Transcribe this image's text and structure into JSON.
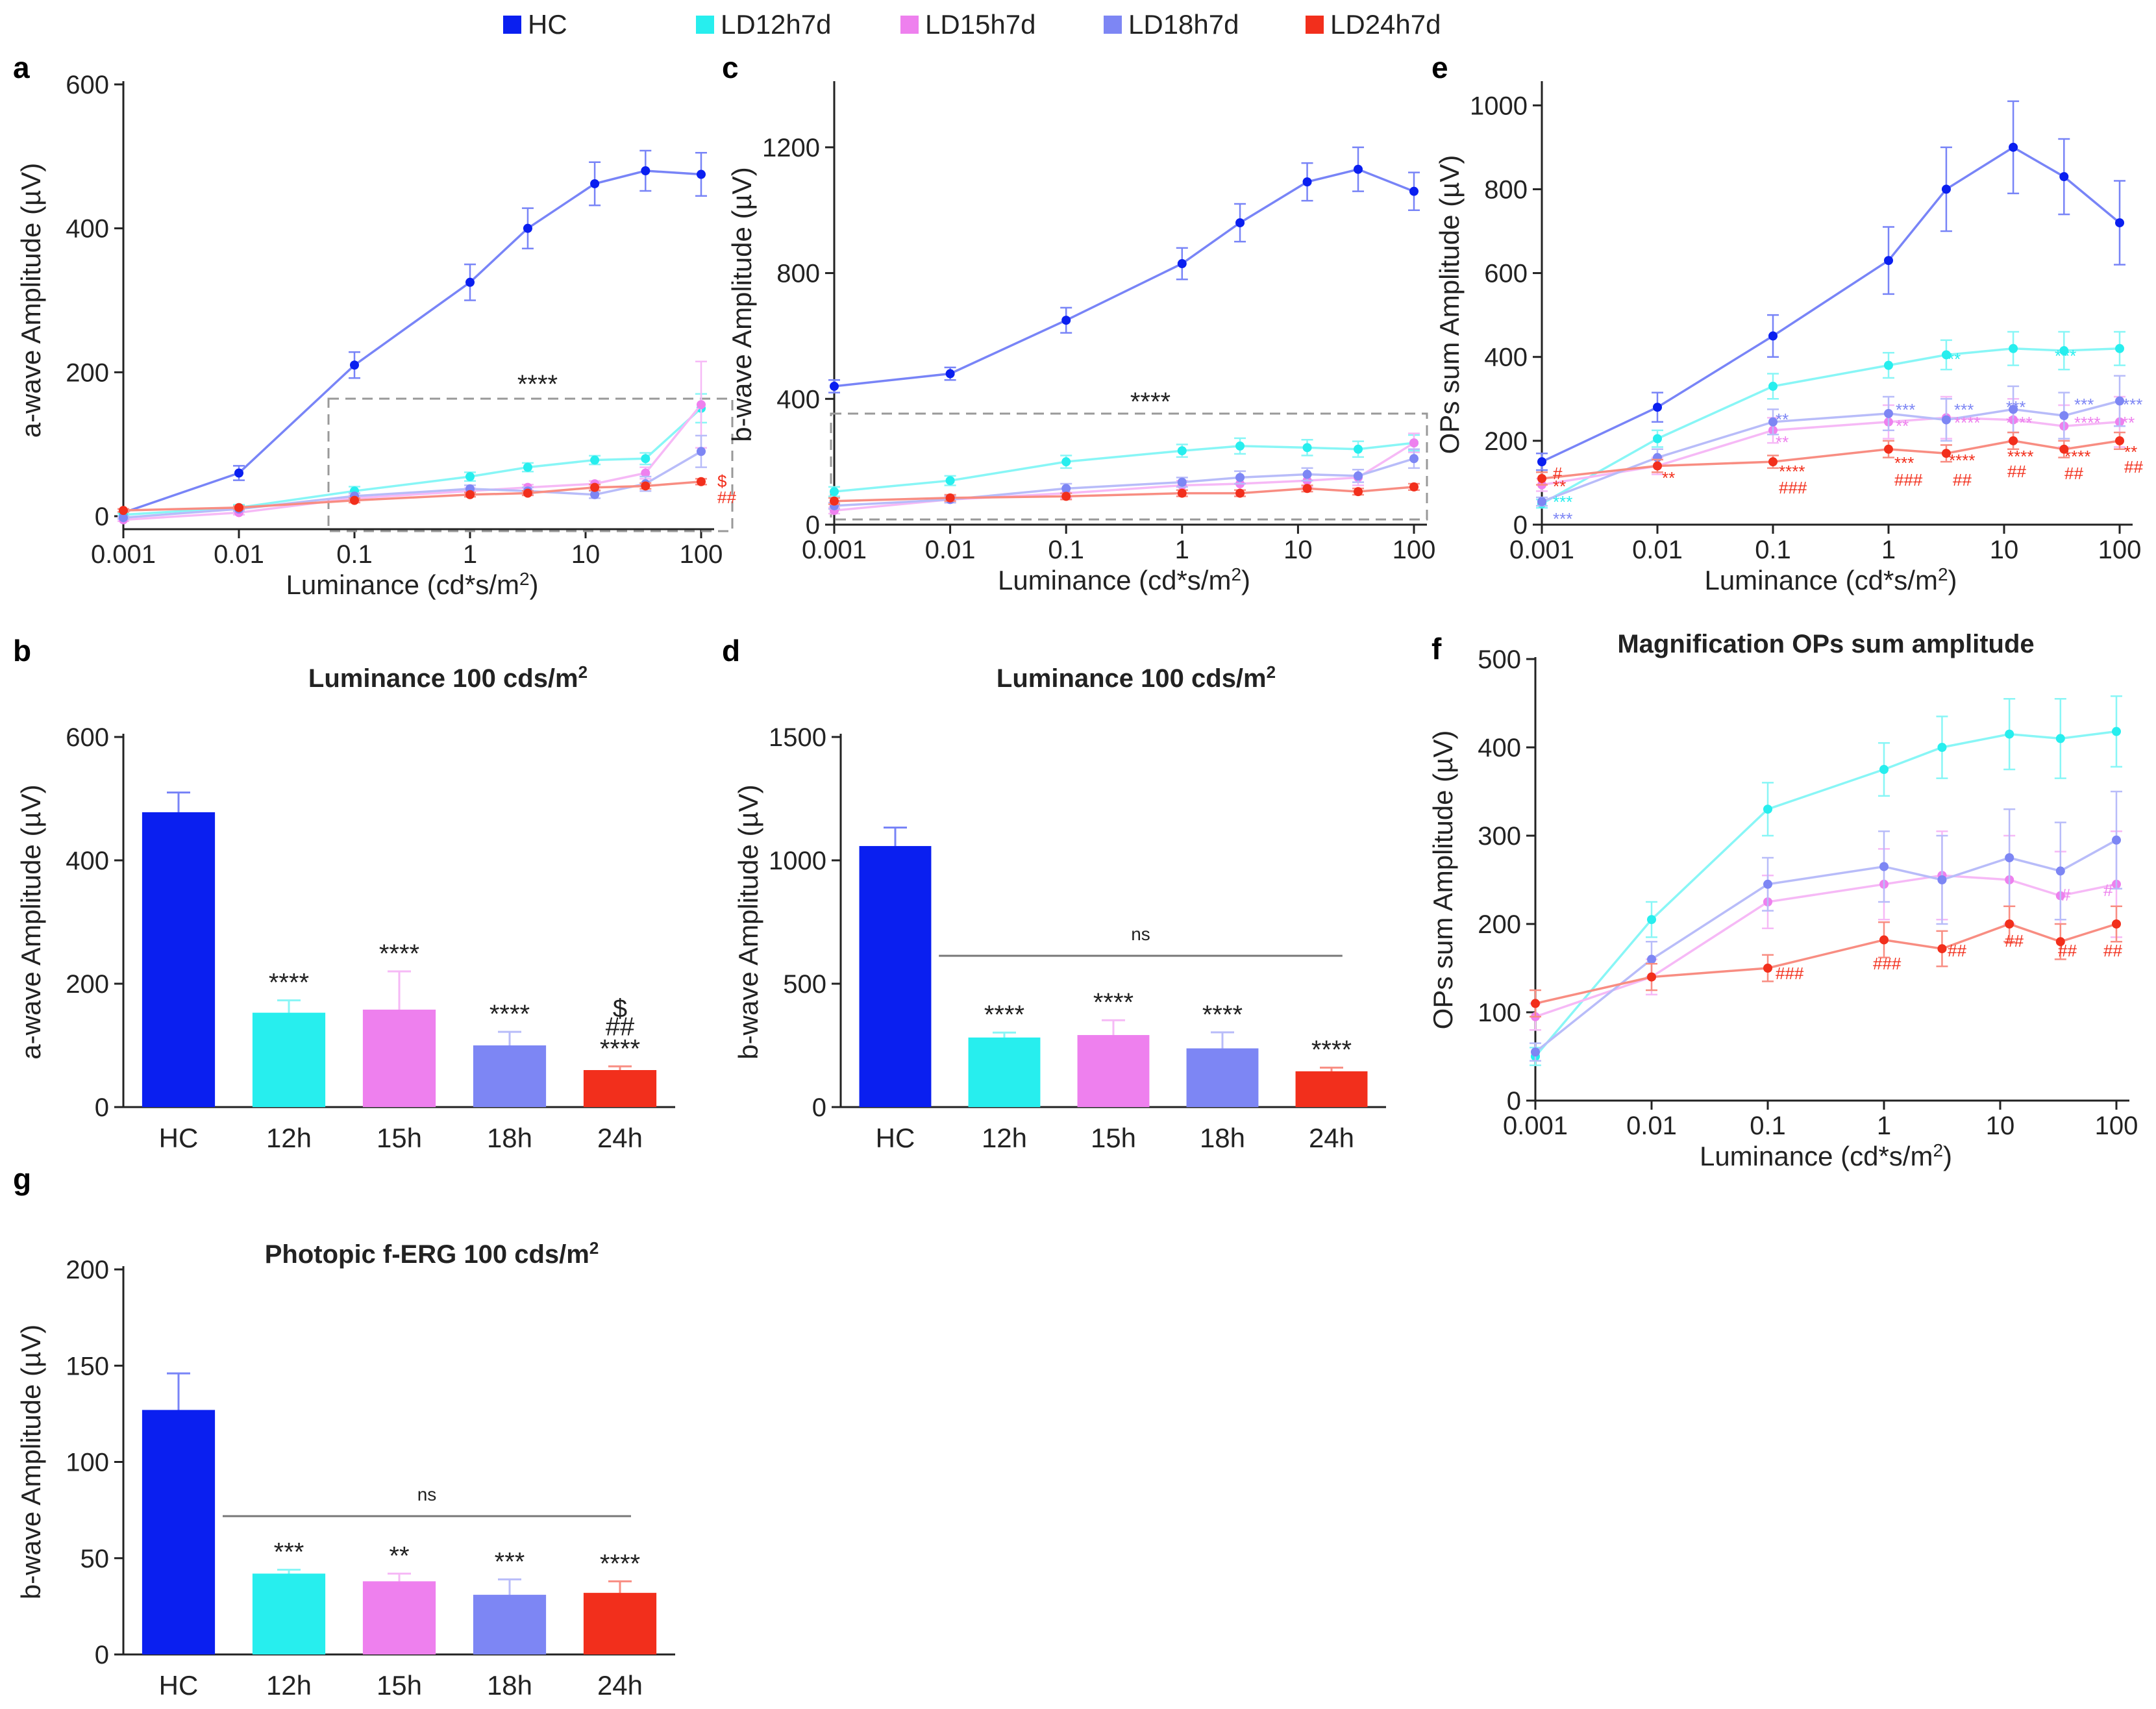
{
  "groups": {
    "names": [
      "HC",
      "LD12h7d",
      "LD15h7d",
      "LD18h7d",
      "LD24h7d"
    ],
    "colors": [
      "#0a1ff0",
      "#27eeee",
      "#ee80ee",
      "#7d86f4",
      "#f22f1c"
    ],
    "short": [
      "HC",
      "12h",
      "15h",
      "18h",
      "24h"
    ]
  },
  "common": {
    "x_label_prefix": "Luminance (cd*s/m",
    "x_label_sup": "2",
    "x_label_suffix": ")",
    "x_ticks": [
      "0.001",
      "0.01",
      "0.1",
      "1",
      "10",
      "100"
    ],
    "amp_unit": "(µV)"
  },
  "chart_data": [
    {
      "panel": "a",
      "type": "line",
      "ylabel": "a-wave Amplitude (µV)",
      "xlabel": "Luminance (cd*s/m2)",
      "x": [
        0.001,
        0.01,
        0.1,
        1,
        3.16,
        12,
        33,
        100
      ],
      "ylim": [
        0,
        600
      ],
      "yticks": [
        0,
        200,
        400,
        600
      ],
      "series": [
        {
          "name": "HC",
          "values": [
            5,
            60,
            210,
            325,
            400,
            462,
            480,
            475
          ],
          "errors": [
            5,
            10,
            18,
            25,
            28,
            30,
            28,
            30
          ]
        },
        {
          "name": "LD12h7d",
          "values": [
            2,
            12,
            35,
            55,
            68,
            78,
            80,
            150
          ],
          "errors": [
            2,
            4,
            6,
            6,
            6,
            6,
            8,
            20
          ]
        },
        {
          "name": "LD15h7d",
          "values": [
            -5,
            5,
            25,
            35,
            40,
            45,
            60,
            155
          ],
          "errors": [
            2,
            3,
            4,
            4,
            4,
            4,
            8,
            60
          ]
        },
        {
          "name": "LD18h7d",
          "values": [
            -2,
            10,
            28,
            38,
            35,
            30,
            45,
            90
          ],
          "errors": [
            2,
            3,
            4,
            5,
            5,
            5,
            10,
            22
          ]
        },
        {
          "name": "LD24h7d",
          "values": [
            8,
            12,
            22,
            30,
            32,
            40,
            42,
            48
          ],
          "errors": [
            2,
            2,
            3,
            3,
            3,
            4,
            4,
            4
          ]
        }
      ],
      "box_label": "****",
      "red_annotations": [
        "$",
        "##"
      ]
    },
    {
      "panel": "c",
      "type": "line",
      "ylabel": "b-wave Amplitude (µV)",
      "xlabel": "Luminance (cd*s/m2)",
      "x": [
        0.001,
        0.01,
        0.1,
        1,
        3.16,
        12,
        33,
        100
      ],
      "ylim": [
        0,
        1400
      ],
      "yticks": [
        0,
        400,
        800,
        1200
      ],
      "series": [
        {
          "name": "HC",
          "values": [
            440,
            480,
            650,
            830,
            960,
            1090,
            1130,
            1060
          ],
          "errors": [
            20,
            20,
            40,
            50,
            60,
            60,
            70,
            60
          ]
        },
        {
          "name": "LD12h7d",
          "values": [
            105,
            140,
            200,
            235,
            250,
            245,
            240,
            260
          ],
          "errors": [
            15,
            15,
            20,
            20,
            25,
            25,
            25,
            25
          ]
        },
        {
          "name": "LD15h7d",
          "values": [
            45,
            80,
            100,
            125,
            130,
            140,
            150,
            260
          ],
          "errors": [
            10,
            10,
            15,
            15,
            20,
            20,
            25,
            30
          ]
        },
        {
          "name": "LD18h7d",
          "values": [
            60,
            80,
            115,
            135,
            150,
            160,
            155,
            210
          ],
          "errors": [
            10,
            10,
            15,
            15,
            20,
            20,
            20,
            30
          ]
        },
        {
          "name": "LD24h7d",
          "values": [
            75,
            85,
            90,
            100,
            100,
            115,
            105,
            120
          ],
          "errors": [
            10,
            10,
            10,
            10,
            10,
            10,
            10,
            10
          ]
        }
      ],
      "box_label": "****"
    },
    {
      "panel": "e",
      "type": "line",
      "ylabel": "OPs sum Amplitude (µV)",
      "xlabel": "Luminance (cd*s/m2)",
      "x": [
        0.001,
        0.01,
        0.1,
        1,
        3.16,
        12,
        33,
        100
      ],
      "ylim": [
        0,
        1050
      ],
      "yticks": [
        0,
        200,
        400,
        600,
        800,
        1000
      ],
      "series": [
        {
          "name": "HC",
          "values": [
            150,
            280,
            450,
            630,
            800,
            900,
            830,
            720
          ],
          "errors": [
            20,
            35,
            50,
            80,
            100,
            110,
            90,
            100
          ]
        },
        {
          "name": "LD12h7d",
          "values": [
            50,
            205,
            330,
            380,
            405,
            420,
            415,
            420
          ],
          "errors": [
            10,
            20,
            30,
            30,
            35,
            40,
            45,
            40
          ]
        },
        {
          "name": "LD15h7d",
          "values": [
            95,
            140,
            225,
            245,
            255,
            250,
            235,
            245
          ],
          "errors": [
            15,
            20,
            30,
            40,
            50,
            50,
            50,
            60
          ]
        },
        {
          "name": "LD18h7d",
          "values": [
            55,
            160,
            245,
            265,
            250,
            275,
            260,
            295
          ],
          "errors": [
            10,
            20,
            30,
            40,
            50,
            55,
            55,
            60
          ]
        },
        {
          "name": "LD24h7d",
          "values": [
            110,
            140,
            150,
            180,
            170,
            200,
            180,
            200
          ],
          "errors": [
            15,
            15,
            15,
            20,
            20,
            20,
            20,
            20
          ]
        }
      ],
      "annotations": {
        "LD12h7d": [
          "***",
          "**",
          "**",
          "**",
          "**"
        ],
        "LD15h7d": [
          "**",
          "**",
          "****",
          "****",
          "****",
          "**"
        ],
        "LD18h7d": [
          "**",
          "***",
          "***",
          "***",
          "***",
          "***"
        ],
        "LD24h7d": [
          "#",
          "**",
          "**",
          "****",
          "###",
          "***",
          "###",
          "****",
          "##",
          "****",
          "##",
          "****",
          "##",
          "**",
          "##"
        ]
      }
    },
    {
      "panel": "f",
      "type": "line",
      "title": "Magnification OPs sum amplitude",
      "ylabel": "OPs sum Amplitude (µV)",
      "xlabel": "Luminance (cd*s/m2)",
      "x": [
        0.001,
        0.01,
        0.1,
        1,
        3.16,
        12,
        33,
        100
      ],
      "ylim": [
        0,
        500
      ],
      "yticks": [
        0,
        100,
        200,
        300,
        400,
        500
      ],
      "series": [
        {
          "name": "LD12h7d",
          "values": [
            50,
            205,
            330,
            375,
            400,
            415,
            410,
            418
          ],
          "errors": [
            10,
            20,
            30,
            30,
            35,
            40,
            45,
            40
          ]
        },
        {
          "name": "LD15h7d",
          "values": [
            95,
            140,
            225,
            245,
            255,
            250,
            232,
            245
          ],
          "errors": [
            15,
            20,
            30,
            40,
            50,
            50,
            50,
            60
          ]
        },
        {
          "name": "LD18h7d",
          "values": [
            55,
            160,
            245,
            265,
            250,
            275,
            260,
            295
          ],
          "errors": [
            10,
            20,
            30,
            40,
            50,
            55,
            55,
            55
          ]
        },
        {
          "name": "LD24h7d",
          "values": [
            110,
            140,
            150,
            182,
            172,
            200,
            180,
            200
          ],
          "errors": [
            15,
            15,
            15,
            20,
            20,
            20,
            20,
            20
          ]
        }
      ],
      "annotations": [
        "###",
        "###",
        "##",
        "##",
        "##",
        "##",
        "#",
        "#"
      ]
    },
    {
      "panel": "b",
      "type": "bar",
      "title_prefix": "Luminance 100 cds/m",
      "title_sup": "2",
      "ylabel": "a-wave Amplitude (µV)",
      "categories": [
        "HC",
        "12h",
        "15h",
        "18h",
        "24h"
      ],
      "values": [
        478,
        153,
        158,
        100,
        60
      ],
      "errors": [
        32,
        20,
        62,
        22,
        6
      ],
      "ylim": [
        0,
        600
      ],
      "yticks": [
        0,
        200,
        400,
        600
      ],
      "labels": [
        "",
        "****",
        "****",
        "****",
        "****"
      ],
      "extra_labels": [
        "##",
        "$"
      ]
    },
    {
      "panel": "d",
      "type": "bar",
      "title_prefix": "Luminance 100 cds/m",
      "title_sup": "2",
      "ylabel": "b-wave Amplitude (µV)",
      "categories": [
        "HC",
        "12h",
        "15h",
        "18h",
        "24h"
      ],
      "values": [
        1058,
        282,
        292,
        238,
        145
      ],
      "errors": [
        75,
        20,
        60,
        65,
        15
      ],
      "ylim": [
        0,
        1500
      ],
      "yticks": [
        0,
        500,
        1000,
        1500
      ],
      "labels": [
        "",
        "****",
        "****",
        "****",
        "****"
      ],
      "ns_label": "ns"
    },
    {
      "panel": "g",
      "type": "bar",
      "title_prefix": "Photopic f-ERG 100 cds/m",
      "title_sup": "2",
      "ylabel": "b-wave Amplitude (µV)",
      "categories": [
        "HC",
        "12h",
        "15h",
        "18h",
        "24h"
      ],
      "values": [
        127,
        42,
        38,
        31,
        32
      ],
      "errors": [
        19,
        2,
        4,
        8,
        6
      ],
      "ylim": [
        0,
        200
      ],
      "yticks": [
        0,
        50,
        100,
        150,
        200
      ],
      "labels": [
        "",
        "***",
        "**",
        "***",
        "****"
      ],
      "ns_label": "ns"
    }
  ]
}
